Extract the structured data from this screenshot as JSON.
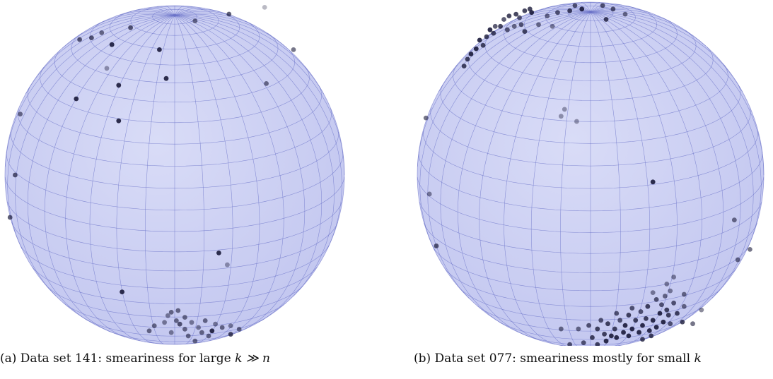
{
  "figure": {
    "panels": [
      {
        "id": "a",
        "caption_prefix": "(a) Data set 141: smeariness for large",
        "caption_math": "k ≫ n",
        "caption_suffix": ""
      },
      {
        "id": "b",
        "caption_prefix": "(b) Data set 077: smeariness mostly for small",
        "caption_math": "k",
        "caption_suffix": ""
      }
    ]
  },
  "colors": {
    "sphere_fill": "#d9dcf7",
    "sphere_fill_edge": "#c4c8f0",
    "grid_line": "#6a72c8",
    "point": "#1a1a3a"
  },
  "points": {
    "a": [
      [
        0.53,
        -0.99,
        0.3
      ],
      [
        0.32,
        -0.95,
        0.7
      ],
      [
        0.12,
        -0.91,
        0.6
      ],
      [
        -0.26,
        -0.87,
        0.7
      ],
      [
        -0.49,
        -0.81,
        0.7
      ],
      [
        -0.43,
        -0.84,
        0.6
      ],
      [
        -0.37,
        -0.77,
        0.9
      ],
      [
        -0.56,
        -0.8,
        0.7
      ],
      [
        -0.4,
        -0.63,
        0.4
      ],
      [
        -0.09,
        -0.74,
        0.9
      ],
      [
        -0.05,
        -0.57,
        0.9
      ],
      [
        -0.33,
        -0.53,
        0.9
      ],
      [
        -0.58,
        -0.45,
        0.9
      ],
      [
        -0.33,
        -0.32,
        0.9
      ],
      [
        0.54,
        -0.54,
        0.6
      ],
      [
        0.7,
        -0.74,
        0.6
      ],
      [
        -0.91,
        -0.36,
        0.6
      ],
      [
        -0.94,
        0.0,
        0.7
      ],
      [
        -0.97,
        0.25,
        0.7
      ],
      [
        0.26,
        0.46,
        0.9
      ],
      [
        0.31,
        0.53,
        0.4
      ],
      [
        -0.31,
        0.69,
        0.9
      ],
      [
        -0.02,
        0.81,
        0.6
      ],
      [
        0.02,
        0.8,
        0.6
      ],
      [
        -0.04,
        0.83,
        0.5
      ],
      [
        0.01,
        0.86,
        0.6
      ],
      [
        -0.06,
        0.87,
        0.5
      ],
      [
        0.03,
        0.88,
        0.7
      ],
      [
        -0.12,
        0.89,
        0.6
      ],
      [
        0.06,
        0.84,
        0.6
      ],
      [
        0.1,
        0.87,
        0.5
      ],
      [
        0.18,
        0.86,
        0.6
      ],
      [
        0.24,
        0.88,
        0.5
      ],
      [
        0.28,
        0.9,
        0.6
      ],
      [
        0.22,
        0.92,
        0.9
      ],
      [
        0.16,
        0.93,
        0.6
      ],
      [
        0.33,
        0.89,
        0.5
      ],
      [
        0.38,
        0.91,
        0.6
      ],
      [
        0.33,
        0.94,
        0.8
      ],
      [
        0.08,
        0.95,
        0.6
      ],
      [
        -0.02,
        0.93,
        0.5
      ],
      [
        0.14,
        0.9,
        0.5
      ],
      [
        -0.15,
        0.92,
        0.6
      ],
      [
        0.2,
        0.95,
        0.6
      ],
      [
        0.12,
        0.98,
        0.6
      ],
      [
        0.06,
        0.91,
        0.6
      ]
    ],
    "b": [
      [
        -0.35,
        -0.96,
        0.8
      ],
      [
        -0.38,
        -0.95,
        0.8
      ],
      [
        -0.34,
        -0.94,
        0.9
      ],
      [
        -0.43,
        -0.93,
        0.8
      ],
      [
        -0.41,
        -0.91,
        0.7
      ],
      [
        -0.47,
        -0.92,
        0.8
      ],
      [
        -0.5,
        -0.9,
        0.7
      ],
      [
        -0.55,
        -0.86,
        0.7
      ],
      [
        -0.58,
        -0.84,
        0.9
      ],
      [
        -0.52,
        -0.86,
        0.8
      ],
      [
        -0.6,
        -0.8,
        0.8
      ],
      [
        -0.64,
        -0.78,
        0.9
      ],
      [
        -0.62,
        -0.75,
        0.8
      ],
      [
        -0.66,
        -0.73,
        0.9
      ],
      [
        -0.69,
        -0.7,
        0.9
      ],
      [
        -0.71,
        -0.67,
        0.8
      ],
      [
        -0.73,
        -0.63,
        0.8
      ],
      [
        -0.48,
        -0.84,
        0.7
      ],
      [
        -0.44,
        -0.86,
        0.6
      ],
      [
        -0.4,
        -0.87,
        0.7
      ],
      [
        -0.38,
        -0.83,
        0.8
      ],
      [
        -0.56,
        -0.82,
        0.8
      ],
      [
        -0.3,
        -0.87,
        0.6
      ],
      [
        -0.25,
        -0.92,
        0.6
      ],
      [
        -0.19,
        -0.94,
        0.7
      ],
      [
        -0.12,
        -0.95,
        0.8
      ],
      [
        -0.09,
        -0.98,
        0.7
      ],
      [
        -0.05,
        -0.96,
        0.9
      ],
      [
        0.07,
        -0.98,
        0.7
      ],
      [
        0.13,
        -0.96,
        0.7
      ],
      [
        0.2,
        -0.93,
        0.6
      ],
      [
        -0.22,
        -0.86,
        0.5
      ],
      [
        0.09,
        -0.9,
        0.8
      ],
      [
        -0.15,
        -0.38,
        0.4
      ],
      [
        -0.17,
        -0.34,
        0.4
      ],
      [
        -0.08,
        -0.31,
        0.4
      ],
      [
        0.36,
        0.04,
        0.9
      ],
      [
        -0.95,
        -0.33,
        0.6
      ],
      [
        0.83,
        0.26,
        0.6
      ],
      [
        0.92,
        0.43,
        0.6
      ],
      [
        0.85,
        0.49,
        0.6
      ],
      [
        -0.93,
        0.11,
        0.5
      ],
      [
        -0.89,
        0.41,
        0.7
      ],
      [
        0.48,
        0.59,
        0.5
      ],
      [
        0.44,
        0.63,
        0.5
      ],
      [
        0.36,
        0.68,
        0.5
      ],
      [
        0.46,
        0.67,
        0.5
      ],
      [
        0.54,
        0.69,
        0.6
      ],
      [
        0.54,
        0.76,
        0.6
      ],
      [
        0.5,
        0.8,
        0.8
      ],
      [
        0.45,
        0.81,
        0.8
      ],
      [
        0.42,
        0.85,
        0.9
      ],
      [
        0.38,
        0.88,
        0.9
      ],
      [
        0.34,
        0.9,
        0.9
      ],
      [
        0.28,
        0.91,
        0.9
      ],
      [
        0.22,
        0.93,
        0.9
      ],
      [
        0.15,
        0.94,
        0.9
      ],
      [
        0.09,
        0.96,
        0.9
      ],
      [
        0.04,
        0.98,
        0.8
      ],
      [
        -0.04,
        0.97,
        0.7
      ],
      [
        0.44,
        0.78,
        0.8
      ],
      [
        0.4,
        0.8,
        0.9
      ],
      [
        0.36,
        0.84,
        0.9
      ],
      [
        0.3,
        0.87,
        0.9
      ],
      [
        0.24,
        0.89,
        0.9
      ],
      [
        0.19,
        0.91,
        0.9
      ],
      [
        0.12,
        0.93,
        0.9
      ],
      [
        0.46,
        0.86,
        0.7
      ],
      [
        0.32,
        0.83,
        0.8
      ],
      [
        0.26,
        0.84,
        0.8
      ],
      [
        0.2,
        0.87,
        0.9
      ],
      [
        0.14,
        0.89,
        0.8
      ],
      [
        0.08,
        0.92,
        0.8
      ],
      [
        0.01,
        0.94,
        0.8
      ],
      [
        0.41,
        0.75,
        0.7
      ],
      [
        0.29,
        0.79,
        0.7
      ],
      [
        0.17,
        0.84,
        0.7
      ],
      [
        -0.07,
        0.89,
        0.6
      ],
      [
        0.59,
        0.86,
        0.6
      ],
      [
        0.64,
        0.78,
        0.5
      ],
      [
        0.53,
        0.85,
        0.8
      ],
      [
        0.3,
        0.95,
        0.8
      ],
      [
        0.35,
        0.93,
        0.8
      ],
      [
        -0.12,
        0.98,
        0.7
      ],
      [
        0.04,
        0.89,
        0.8
      ],
      [
        0.1,
        0.86,
        0.8
      ],
      [
        0.22,
        0.81,
        0.8
      ],
      [
        0.33,
        0.76,
        0.8
      ],
      [
        0.38,
        0.72,
        0.7
      ],
      [
        -0.17,
        0.89,
        0.6
      ],
      [
        0.48,
        0.74,
        0.7
      ],
      [
        0.43,
        0.7,
        0.6
      ],
      [
        0.24,
        0.77,
        0.7
      ],
      [
        0.15,
        0.8,
        0.7
      ],
      [
        0.06,
        0.84,
        0.7
      ],
      [
        -0.01,
        0.87,
        0.7
      ]
    ]
  }
}
